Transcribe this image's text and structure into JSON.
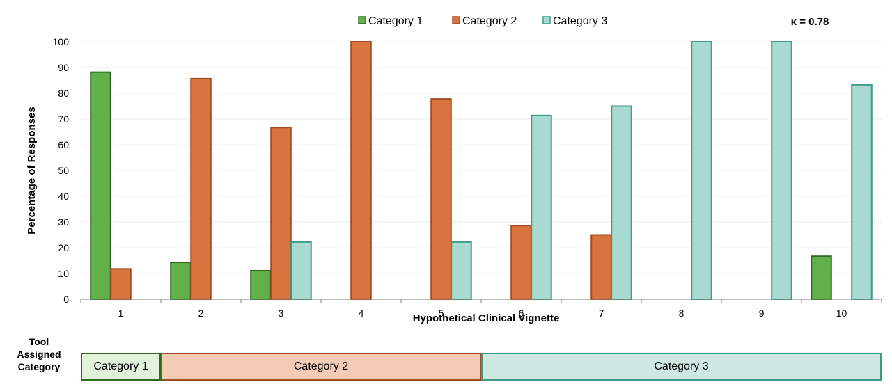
{
  "chart_data": {
    "type": "bar",
    "categories": [
      "1",
      "2",
      "3",
      "4",
      "5",
      "6",
      "7",
      "8",
      "9",
      "10"
    ],
    "series": [
      {
        "name": "Category 1",
        "values": [
          88.2,
          14.3,
          11.1,
          0,
          0,
          0,
          0,
          0,
          0,
          16.7
        ]
      },
      {
        "name": "Category 2",
        "values": [
          11.8,
          85.7,
          66.7,
          100,
          77.8,
          28.6,
          25,
          0,
          0,
          0
        ]
      },
      {
        "name": "Category 3",
        "values": [
          0,
          0,
          22.2,
          0,
          22.2,
          71.4,
          75,
          100,
          100,
          83.3
        ]
      }
    ],
    "xlabel": "Hypothetical Clinical Vignette",
    "ylabel": "Percentage of Responses",
    "ylim": [
      0,
      100
    ],
    "yticks": [
      "0",
      "10",
      "20",
      "30",
      "40",
      "50",
      "60",
      "70",
      "80",
      "90",
      "100"
    ],
    "grid": true,
    "legend_position": "top",
    "annotation": "κ = 0.78",
    "colors": {
      "Category 1": {
        "fill": "#62b04a",
        "stroke": "#2d6b1e"
      },
      "Category 2": {
        "fill": "#d9743f",
        "stroke": "#a04a22"
      },
      "Category 3": {
        "fill": "#a9dacf",
        "stroke": "#3d9a87"
      }
    }
  },
  "tool_assigned": {
    "label_lines": [
      "Tool",
      "Assigned",
      "Category"
    ],
    "segments": [
      {
        "label": "Category 1",
        "vignettes": [
          1
        ],
        "fill": "#e2f2da",
        "stroke": "#2d6b1e"
      },
      {
        "label": "Category 2",
        "vignettes": [
          2,
          3,
          4,
          5
        ],
        "fill": "#f4cbb5",
        "stroke": "#a04a22"
      },
      {
        "label": "Category 3",
        "vignettes": [
          6,
          7,
          8,
          9,
          10
        ],
        "fill": "#cde8e1",
        "stroke": "#3d9a87"
      }
    ]
  }
}
